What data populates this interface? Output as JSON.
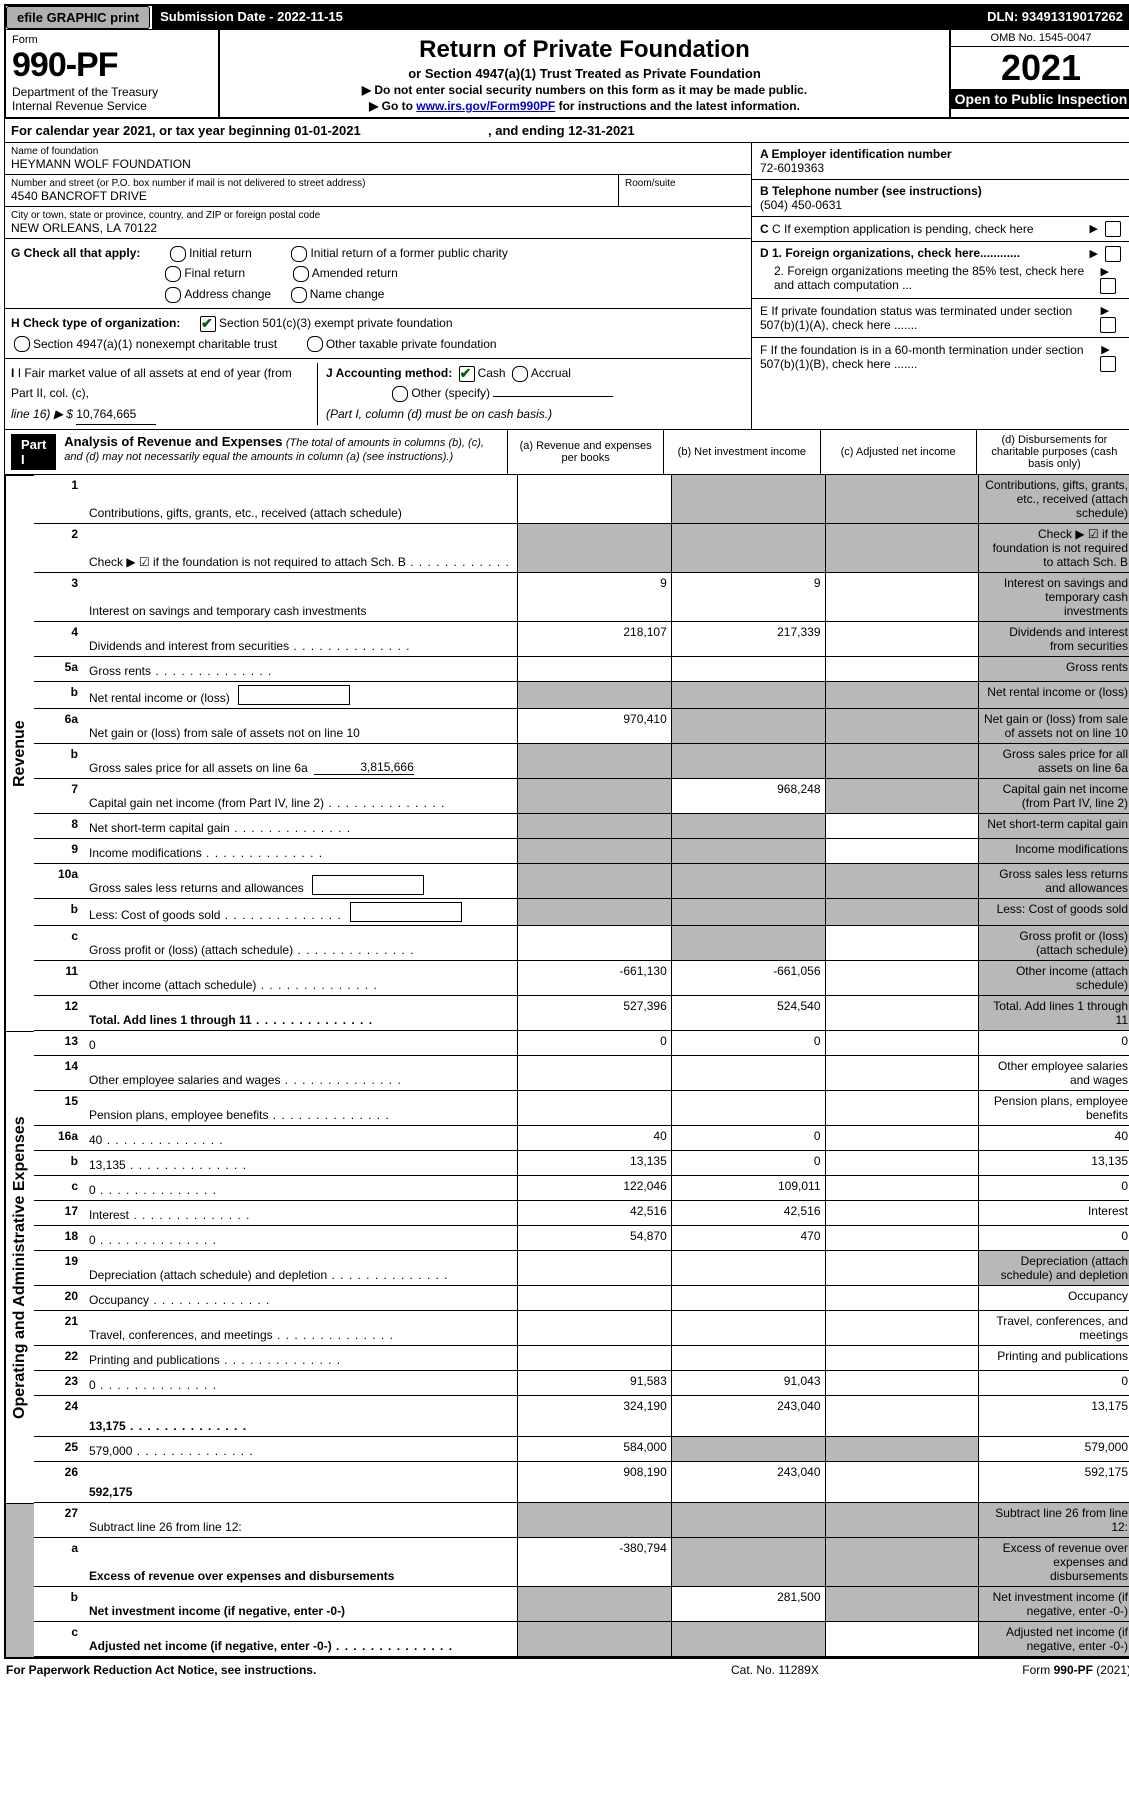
{
  "topbar": {
    "efile": "efile GRAPHIC print",
    "sub_label": "Submission Date - 2022-11-15",
    "dln": "DLN: 93491319017262"
  },
  "header": {
    "form_word": "Form",
    "form_number": "990-PF",
    "dept1": "Department of the Treasury",
    "dept2": "Internal Revenue Service",
    "title": "Return of Private Foundation",
    "subtitle": "or Section 4947(a)(1) Trust Treated as Private Foundation",
    "note1": "▶ Do not enter social security numbers on this form as it may be made public.",
    "note2_pre": "▶ Go to ",
    "note2_link": "www.irs.gov/Form990PF",
    "note2_post": " for instructions and the latest information.",
    "omb": "OMB No. 1545-0047",
    "year": "2021",
    "inspection": "Open to Public Inspection"
  },
  "calendar": {
    "text_a": "For calendar year 2021, or tax year beginning 01-01-2021",
    "text_b": ", and ending 12-31-2021"
  },
  "info": {
    "name_lbl": "Name of foundation",
    "name_val": "HEYMANN WOLF FOUNDATION",
    "addr_lbl": "Number and street (or P.O. box number if mail is not delivered to street address)",
    "addr_val": "4540 BANCROFT DRIVE",
    "room_lbl": "Room/suite",
    "city_lbl": "City or town, state or province, country, and ZIP or foreign postal code",
    "city_val": "NEW ORLEANS, LA  70122",
    "A_lbl": "A Employer identification number",
    "A_val": "72-6019363",
    "B_lbl": "B Telephone number (see instructions)",
    "B_val": "(504) 450-0631",
    "C_lbl": "C If exemption application is pending, check here",
    "D1_lbl": "D 1. Foreign organizations, check here............",
    "D2_lbl": "2. Foreign organizations meeting the 85% test, check here and attach computation ...",
    "E_lbl": "E  If private foundation status was terminated under section 507(b)(1)(A), check here .......",
    "F_lbl": "F  If the foundation is in a 60-month termination under section 507(b)(1)(B), check here .......",
    "G_lbl": "G Check all that apply:",
    "G_opts": [
      "Initial return",
      "Final return",
      "Address change",
      "Initial return of a former public charity",
      "Amended return",
      "Name change"
    ],
    "H_lbl": "H Check type of organization:",
    "H_opt1": "Section 501(c)(3) exempt private foundation",
    "H_opt2a": "Section 4947(a)(1) nonexempt charitable trust",
    "H_opt2b": "Other taxable private foundation",
    "I_lbl": "I Fair market value of all assets at end of year (from Part II, col. (c),",
    "I_line": "line 16) ▶ $",
    "I_val": "10,764,665",
    "J_lbl": "J Accounting method:",
    "J_cash": "Cash",
    "J_accrual": "Accrual",
    "J_other": "Other (specify)",
    "J_note": "(Part I, column (d) must be on cash basis.)"
  },
  "part1": {
    "label": "Part I",
    "title": "Analysis of Revenue and Expenses",
    "title_note": " (The total of amounts in columns (b), (c), and (d) may not necessarily equal the amounts in column (a) (see instructions).)",
    "col_a": "(a)   Revenue and expenses per books",
    "col_b": "(b)   Net investment income",
    "col_c": "(c)   Adjusted net income",
    "col_d": "(d)   Disbursements for charitable purposes (cash basis only)"
  },
  "side": {
    "revenue": "Revenue",
    "expenses": "Operating and Administrative Expenses"
  },
  "rows": [
    {
      "n": "1",
      "d": "Contributions, gifts, grants, etc., received (attach schedule)",
      "a": "",
      "b_g": true,
      "c_g": true,
      "d_g": true
    },
    {
      "n": "2",
      "d": "Check ▶ ☑ if the foundation is not required to attach Sch. B",
      "dots": true,
      "a_g": true,
      "b_g": true,
      "c_g": true,
      "d_g": true,
      "bold_not": true
    },
    {
      "n": "3",
      "d": "Interest on savings and temporary cash investments",
      "a": "9",
      "b": "9",
      "d_g": true
    },
    {
      "n": "4",
      "d": "Dividends and interest from securities",
      "dots": true,
      "a": "218,107",
      "b": "217,339",
      "d_g": true
    },
    {
      "n": "5a",
      "d": "Gross rents",
      "dots": true,
      "d_g": true
    },
    {
      "n": "b",
      "d": "Net rental income or (loss)",
      "box": true,
      "a_g": true,
      "b_g": true,
      "c_g": true,
      "d_g": true
    },
    {
      "n": "6a",
      "d": "Net gain or (loss) from sale of assets not on line 10",
      "a": "970,410",
      "b_g": true,
      "c_g": true,
      "d_g": true
    },
    {
      "n": "b",
      "d": "Gross sales price for all assets on line 6a",
      "inline_val": "3,815,666",
      "a_g": true,
      "b_g": true,
      "c_g": true,
      "d_g": true
    },
    {
      "n": "7",
      "d": "Capital gain net income (from Part IV, line 2)",
      "dots": true,
      "a_g": true,
      "b": "968,248",
      "c_g": true,
      "d_g": true
    },
    {
      "n": "8",
      "d": "Net short-term capital gain",
      "dots": true,
      "a_g": true,
      "b_g": true,
      "d_g": true
    },
    {
      "n": "9",
      "d": "Income modifications",
      "dots": true,
      "a_g": true,
      "b_g": true,
      "d_g": true
    },
    {
      "n": "10a",
      "d": "Gross sales less returns and allowances",
      "box": true,
      "a_g": true,
      "b_g": true,
      "c_g": true,
      "d_g": true
    },
    {
      "n": "b",
      "d": "Less: Cost of goods sold",
      "dots": true,
      "box": true,
      "a_g": true,
      "b_g": true,
      "c_g": true,
      "d_g": true
    },
    {
      "n": "c",
      "d": "Gross profit or (loss) (attach schedule)",
      "dots": true,
      "b_g": true,
      "d_g": true
    },
    {
      "n": "11",
      "d": "Other income (attach schedule)",
      "dots": true,
      "a": "-661,130",
      "b": "-661,056",
      "d_g": true
    },
    {
      "n": "12",
      "d": "Total. Add lines 1 through 11",
      "dots": true,
      "bold": true,
      "a": "527,396",
      "b": "524,540",
      "d_g": true
    }
  ],
  "rows2": [
    {
      "n": "13",
      "d": "0",
      "a": "0",
      "b": "0"
    },
    {
      "n": "14",
      "d": "Other employee salaries and wages",
      "dots": true
    },
    {
      "n": "15",
      "d": "Pension plans, employee benefits",
      "dots": true
    },
    {
      "n": "16a",
      "d": "40",
      "dots": true,
      "a": "40",
      "b": "0"
    },
    {
      "n": "b",
      "d": "13,135",
      "dots": true,
      "a": "13,135",
      "b": "0"
    },
    {
      "n": "c",
      "d": "0",
      "dots": true,
      "a": "122,046",
      "b": "109,011"
    },
    {
      "n": "17",
      "d": "Interest",
      "dots": true,
      "a": "42,516",
      "b": "42,516"
    },
    {
      "n": "18",
      "d": "0",
      "dots": true,
      "a": "54,870",
      "b": "470"
    },
    {
      "n": "19",
      "d": "Depreciation (attach schedule) and depletion",
      "dots": true,
      "d_g": true
    },
    {
      "n": "20",
      "d": "Occupancy",
      "dots": true
    },
    {
      "n": "21",
      "d": "Travel, conferences, and meetings",
      "dots": true
    },
    {
      "n": "22",
      "d": "Printing and publications",
      "dots": true
    },
    {
      "n": "23",
      "d": "0",
      "dots": true,
      "a": "91,583",
      "b": "91,043"
    },
    {
      "n": "24",
      "d": "13,175",
      "dots": true,
      "bold": true,
      "a": "324,190",
      "b": "243,040",
      "tall": true
    },
    {
      "n": "25",
      "d": "579,000",
      "dots": true,
      "a": "584,000",
      "b_g": true,
      "c_g": true
    },
    {
      "n": "26",
      "d": "592,175",
      "bold": true,
      "a": "908,190",
      "b": "243,040",
      "tall": true
    }
  ],
  "rows3": [
    {
      "n": "27",
      "d": "Subtract line 26 from line 12:",
      "a_g": true,
      "b_g": true,
      "c_g": true,
      "d_g": true
    },
    {
      "n": "a",
      "d": "Excess of revenue over expenses and disbursements",
      "bold": true,
      "a": "-380,794",
      "b_g": true,
      "c_g": true,
      "d_g": true
    },
    {
      "n": "b",
      "d": "Net investment income (if negative, enter -0-)",
      "bold": true,
      "a_g": true,
      "b": "281,500",
      "c_g": true,
      "d_g": true
    },
    {
      "n": "c",
      "d": "Adjusted net income (if negative, enter -0-)",
      "dots": true,
      "bold": true,
      "a_g": true,
      "b_g": true,
      "d_g": true
    }
  ],
  "footer": {
    "left": "For Paperwork Reduction Act Notice, see instructions.",
    "center": "Cat. No. 11289X",
    "right": "Form 990-PF (2021)"
  }
}
